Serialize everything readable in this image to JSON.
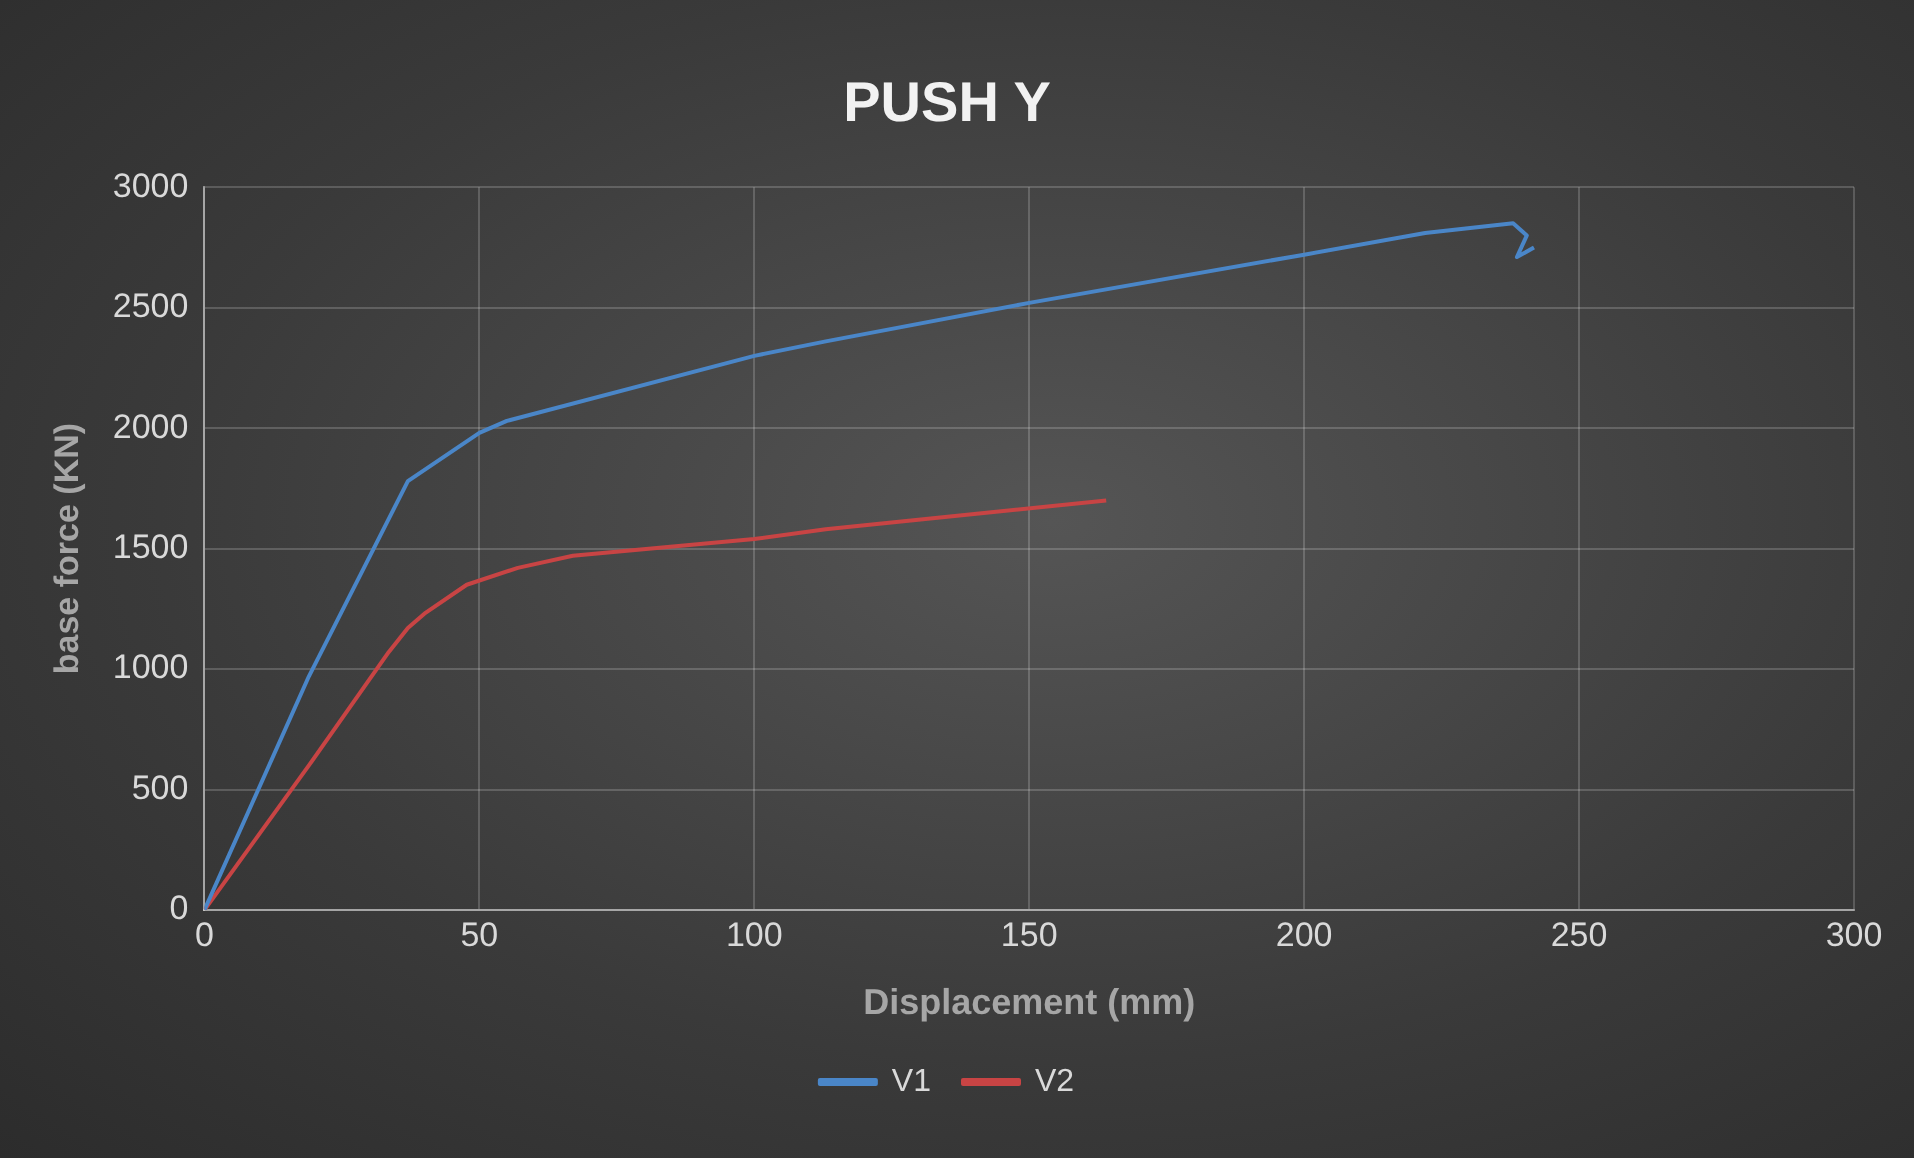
{
  "chart_data": {
    "type": "line",
    "title": "PUSH Y",
    "xlabel": "Displacement (mm)",
    "ylabel": "base force (KN)",
    "xlim": [
      0,
      300
    ],
    "xticks": [
      0,
      50,
      100,
      150,
      200,
      250,
      300
    ],
    "ylim": [
      0,
      3000
    ],
    "yticks": [
      0,
      500,
      1000,
      1500,
      2000,
      2500,
      3000
    ],
    "grid": true,
    "legend": "bottom",
    "marker": "none",
    "line_style": "solid",
    "series": [
      {
        "name": "V1",
        "color": "#4a86c8",
        "x": [
          0,
          19,
          37,
          50,
          55,
          100,
          113,
          150,
          200,
          222,
          238,
          240.5,
          238.7,
          241.8
        ],
        "values": [
          0,
          970,
          1780,
          1980,
          2030,
          2300,
          2360,
          2520,
          2720,
          2810,
          2850,
          2800,
          2710,
          2750
        ]
      },
      {
        "name": "V2",
        "color": "#c84444",
        "x": [
          0,
          19,
          33.5,
          37,
          40,
          47.7,
          57,
          67,
          100,
          113,
          164
        ],
        "values": [
          0,
          600,
          1070,
          1170,
          1230,
          1350,
          1420,
          1470,
          1540,
          1580,
          1700
        ]
      }
    ]
  }
}
